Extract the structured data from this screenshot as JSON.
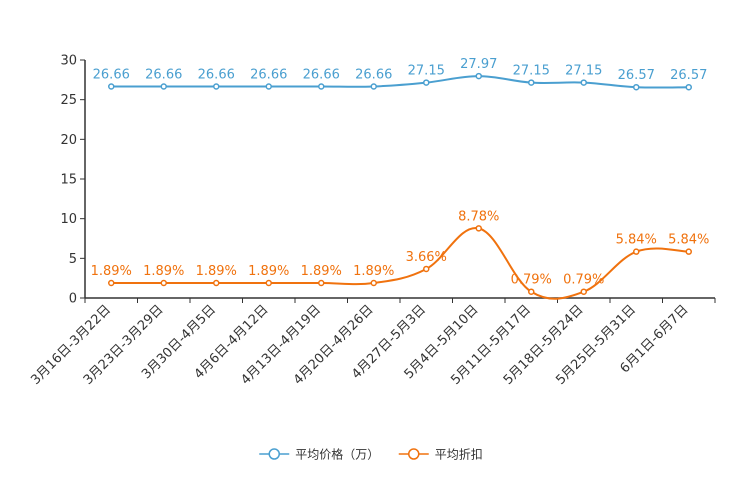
{
  "chart_data": {
    "type": "line",
    "title": "",
    "xlabel": "",
    "ylabel": "",
    "ylim": [
      0,
      30
    ],
    "yticks": [
      0,
      5,
      10,
      15,
      20,
      25,
      30
    ],
    "grid": false,
    "legend_position": "bottom-center",
    "categories": [
      "3月16日-3月22日",
      "3月23日-3月29日",
      "3月30日-4月5日",
      "4月6日-4月12日",
      "4月13日-4月19日",
      "4月20日-4月26日",
      "4月27日-5月3日",
      "5月4日-5月10日",
      "5月11日-5月17日",
      "5月18日-5月24日",
      "5月25日-5月31日",
      "6月1日-6月7日"
    ],
    "series": [
      {
        "name": "平均价格（万）",
        "color": "#4a9fd0",
        "values": [
          26.66,
          26.66,
          26.66,
          26.66,
          26.66,
          26.66,
          27.15,
          27.97,
          27.15,
          27.15,
          26.57,
          26.57
        ],
        "labels": [
          "26.66",
          "26.66",
          "26.66",
          "26.66",
          "26.66",
          "26.66",
          "27.15",
          "27.97",
          "27.15",
          "27.15",
          "26.57",
          "26.57"
        ]
      },
      {
        "name": "平均折扣",
        "color": "#f0720e",
        "values": [
          1.89,
          1.89,
          1.89,
          1.89,
          1.89,
          1.89,
          3.66,
          8.78,
          0.79,
          0.79,
          5.84,
          5.84
        ],
        "labels": [
          "1.89%",
          "1.89%",
          "1.89%",
          "1.89%",
          "1.89%",
          "1.89%",
          "3.66%",
          "8.78%",
          "0.79%",
          "0.79%",
          "5.84%",
          "5.84%"
        ]
      }
    ]
  }
}
